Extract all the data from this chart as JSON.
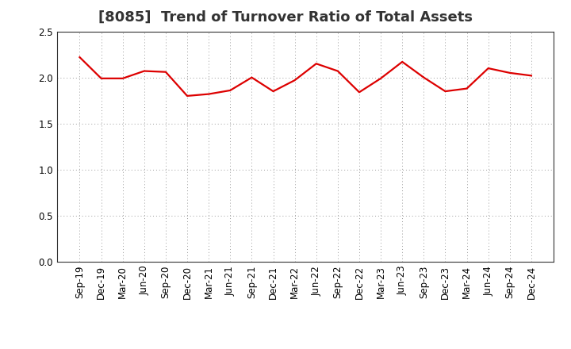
{
  "title": "[8085]  Trend of Turnover Ratio of Total Assets",
  "x_labels": [
    "Sep-19",
    "Dec-19",
    "Mar-20",
    "Jun-20",
    "Sep-20",
    "Dec-20",
    "Mar-21",
    "Jun-21",
    "Sep-21",
    "Dec-21",
    "Mar-22",
    "Jun-22",
    "Sep-22",
    "Dec-22",
    "Mar-23",
    "Jun-23",
    "Sep-23",
    "Dec-23",
    "Mar-24",
    "Jun-24",
    "Sep-24",
    "Dec-24"
  ],
  "y_values": [
    2.22,
    1.99,
    1.99,
    2.07,
    2.06,
    1.8,
    1.82,
    1.86,
    2.0,
    1.85,
    1.97,
    2.15,
    2.07,
    1.84,
    1.99,
    2.17,
    2.0,
    1.85,
    1.88,
    2.1,
    2.05,
    2.02
  ],
  "line_color": "#dd0000",
  "line_width": 1.6,
  "ylim": [
    0.0,
    2.5
  ],
  "yticks": [
    0.0,
    0.5,
    1.0,
    1.5,
    2.0,
    2.5
  ],
  "background_color": "#ffffff",
  "plot_bg_color": "#ffffff",
  "grid_color": "#999999",
  "title_fontsize": 13,
  "tick_fontsize": 8.5,
  "title_color": "#333333"
}
